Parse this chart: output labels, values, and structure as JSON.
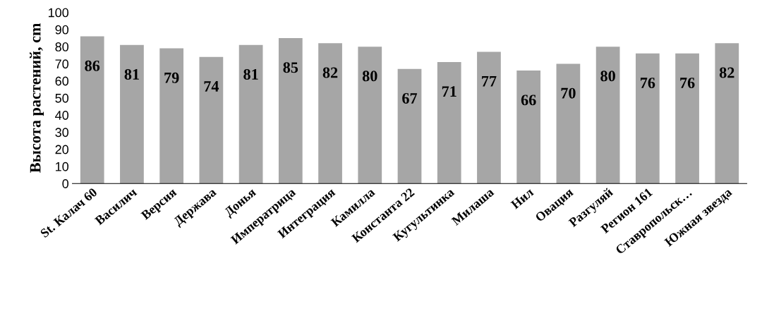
{
  "chart_data": {
    "type": "bar",
    "ylabel": "Высота растений, cm",
    "categories": [
      "St. Калач 60",
      "Василич",
      "Версия",
      "Держава",
      "Донья",
      "Императрица",
      "Интеграция",
      "Камилла",
      "Константа 22",
      "Кугультинка",
      "Милаша",
      "Нил",
      "Овация",
      "Разгуляй",
      "Регион 161",
      "Ставропольск…",
      "Южная звезда"
    ],
    "values": [
      86,
      81,
      79,
      74,
      81,
      85,
      82,
      80,
      67,
      71,
      77,
      66,
      70,
      80,
      76,
      76,
      82
    ],
    "color": "#a6a6a6",
    "ylim": [
      0,
      100
    ],
    "yticks": [
      0,
      10,
      20,
      30,
      40,
      50,
      60,
      70,
      80,
      90,
      100
    ],
    "grid": false,
    "data_labels": true
  }
}
